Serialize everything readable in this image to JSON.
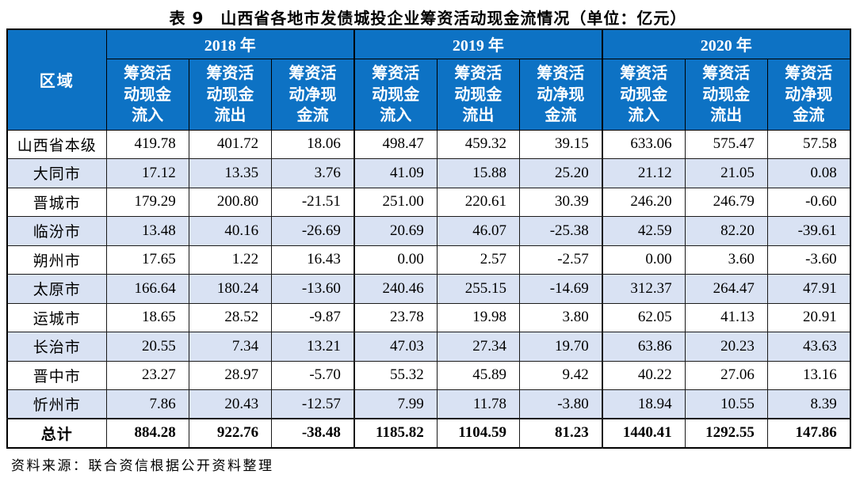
{
  "title": "表 9　山西省各地市发债城投企业筹资活动现金流情况（单位：亿元）",
  "table": {
    "region_header": "区域",
    "year_groups": [
      {
        "label": "2018 年",
        "sub": [
          "筹资活动现金流入",
          "筹资活动现金流出",
          "筹资活动净现金流"
        ]
      },
      {
        "label": "2019 年",
        "sub": [
          "筹资活动现金流入",
          "筹资活动现金流出",
          "筹资活动净现金流"
        ]
      },
      {
        "label": "2020 年",
        "sub": [
          "筹资活动现金流入",
          "筹资活动现金流出",
          "筹资活动净现金流"
        ]
      }
    ],
    "rows": [
      {
        "region": "山西省本级",
        "values": [
          "419.78",
          "401.72",
          "18.06",
          "498.47",
          "459.32",
          "39.15",
          "633.06",
          "575.47",
          "57.58"
        ]
      },
      {
        "region": "大同市",
        "values": [
          "17.12",
          "13.35",
          "3.76",
          "41.09",
          "15.88",
          "25.20",
          "21.12",
          "21.05",
          "0.08"
        ]
      },
      {
        "region": "晋城市",
        "values": [
          "179.29",
          "200.80",
          "-21.51",
          "251.00",
          "220.61",
          "30.39",
          "246.20",
          "246.79",
          "-0.60"
        ]
      },
      {
        "region": "临汾市",
        "values": [
          "13.48",
          "40.16",
          "-26.69",
          "20.69",
          "46.07",
          "-25.38",
          "42.59",
          "82.20",
          "-39.61"
        ]
      },
      {
        "region": "朔州市",
        "values": [
          "17.65",
          "1.22",
          "16.43",
          "0.00",
          "2.57",
          "-2.57",
          "0.00",
          "3.60",
          "-3.60"
        ]
      },
      {
        "region": "太原市",
        "values": [
          "166.64",
          "180.24",
          "-13.60",
          "240.46",
          "255.15",
          "-14.69",
          "312.37",
          "264.47",
          "47.91"
        ]
      },
      {
        "region": "运城市",
        "values": [
          "18.65",
          "28.52",
          "-9.87",
          "23.78",
          "19.98",
          "3.80",
          "62.05",
          "41.13",
          "20.91"
        ]
      },
      {
        "region": "长治市",
        "values": [
          "20.55",
          "7.34",
          "13.21",
          "47.03",
          "27.34",
          "19.70",
          "63.86",
          "20.23",
          "43.63"
        ]
      },
      {
        "region": "晋中市",
        "values": [
          "23.27",
          "28.97",
          "-5.70",
          "55.32",
          "45.89",
          "9.42",
          "40.22",
          "27.06",
          "13.16"
        ]
      },
      {
        "region": "忻州市",
        "values": [
          "7.86",
          "20.43",
          "-12.57",
          "7.99",
          "11.78",
          "-3.80",
          "18.94",
          "10.55",
          "8.39"
        ]
      }
    ],
    "total": {
      "region": "总计",
      "values": [
        "884.28",
        "922.76",
        "-38.48",
        "1185.82",
        "1104.59",
        "81.23",
        "1440.41",
        "1292.55",
        "147.86"
      ]
    }
  },
  "footer": {
    "source": "资料来源：联合资信根据公开资料整理"
  },
  "colors": {
    "header_bg": "#0d72c4",
    "header_text": "#ffffff",
    "alt_row_bg": "#d9e2f3",
    "border_color": "#1a1a1a"
  }
}
